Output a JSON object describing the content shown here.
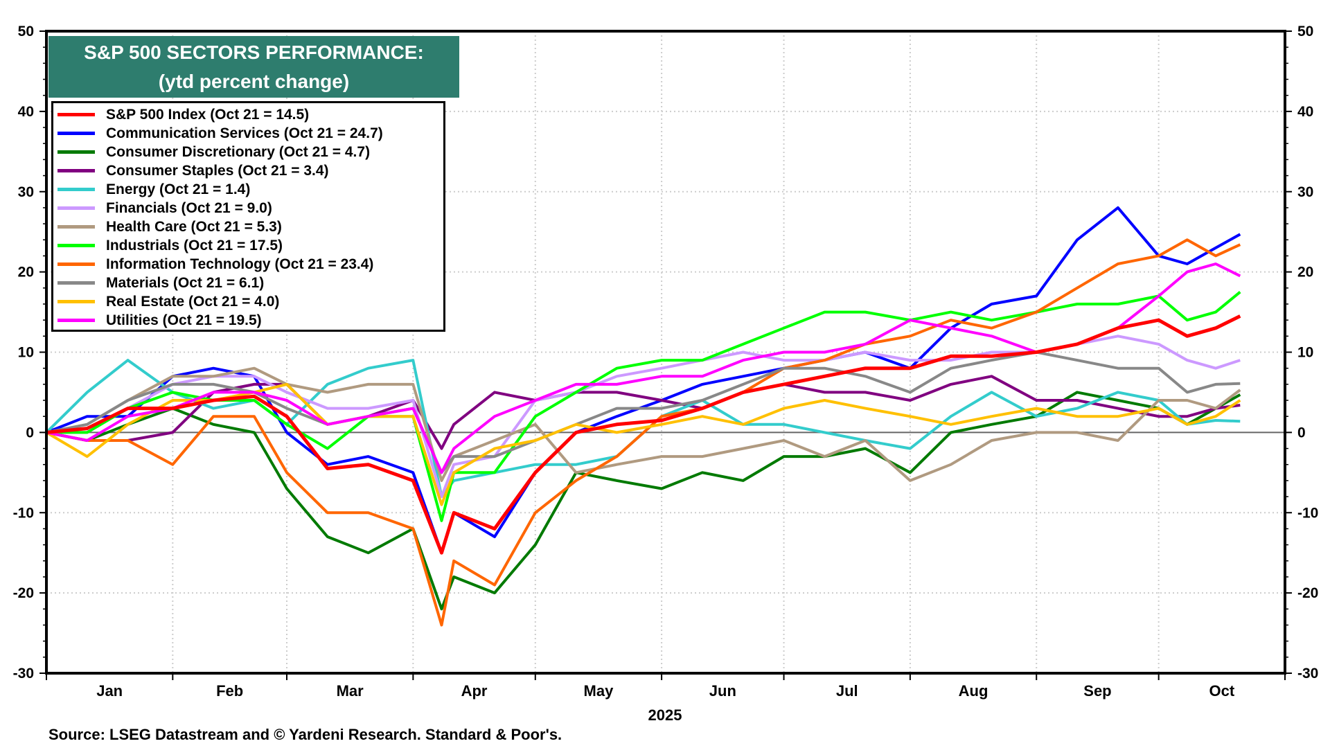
{
  "chart_data": {
    "type": "line",
    "title": "S&P 500 SECTORS PERFORMANCE:",
    "subtitle": "(ytd percent change)",
    "xlabel": "2025",
    "ylabel": "",
    "ylim": [
      -30,
      50
    ],
    "yticks": [
      50,
      40,
      30,
      20,
      10,
      0,
      -10,
      -20,
      -30
    ],
    "x_unit": "day of year 2025",
    "xlim": [
      0,
      304
    ],
    "month_ticks": [
      0,
      31,
      59,
      90,
      120,
      151,
      181,
      212,
      243,
      273,
      304
    ],
    "months": [
      "Jan",
      "Feb",
      "Mar",
      "Apr",
      "May",
      "Jun",
      "Jul",
      "Aug",
      "Sep",
      "Oct"
    ],
    "grid": true,
    "legend_position": "top-left",
    "x": [
      0,
      10,
      20,
      31,
      41,
      51,
      59,
      69,
      79,
      90,
      97,
      100,
      110,
      120,
      130,
      140,
      151,
      161,
      171,
      181,
      191,
      201,
      212,
      222,
      232,
      243,
      253,
      263,
      273,
      280,
      287,
      293
    ],
    "series": [
      {
        "name": "S&P 500 Index (Oct 21 = 14.5)",
        "color": "#ff0000",
        "width": 5,
        "values": [
          0,
          0.5,
          3,
          3,
          4,
          4.5,
          2,
          -4.5,
          -4,
          -6,
          -15,
          -10,
          -12,
          -5,
          0,
          1,
          1.5,
          3,
          5,
          6,
          7,
          8,
          8,
          9.5,
          9.5,
          10,
          11,
          13,
          14,
          12,
          13,
          14.5
        ]
      },
      {
        "name": "Communication Services (Oct 21 = 24.7)",
        "color": "#0000ff",
        "width": 4,
        "values": [
          0,
          2,
          2,
          7,
          8,
          7,
          0,
          -4,
          -3,
          -5,
          -15,
          -10,
          -13,
          -5,
          0,
          2,
          4,
          6,
          7,
          8,
          9,
          10,
          8,
          13,
          16,
          17,
          24,
          28,
          22,
          21,
          23,
          24.7
        ]
      },
      {
        "name": "Consumer Discretionary (Oct 21 = 4.7)",
        "color": "#007a00",
        "width": 4,
        "values": [
          0,
          -1,
          1,
          3,
          1,
          0,
          -7,
          -13,
          -15,
          -12,
          -22,
          -18,
          -20,
          -14,
          -5,
          -6,
          -7,
          -5,
          -6,
          -3,
          -3,
          -2,
          -5,
          0,
          1,
          2,
          5,
          4,
          3,
          1,
          3,
          4.7
        ]
      },
      {
        "name": "Consumer Staples (Oct 21 = 3.4)",
        "color": "#800080",
        "width": 4,
        "values": [
          0,
          -1,
          -1,
          0,
          5,
          6,
          6,
          1,
          2,
          4,
          -2,
          1,
          5,
          4,
          5,
          5,
          4,
          3,
          5,
          6,
          5,
          5,
          4,
          6,
          7,
          4,
          4,
          3,
          2,
          2,
          3,
          3.4
        ]
      },
      {
        "name": "Energy (Oct 21 = 1.4)",
        "color": "#33cccc",
        "width": 4,
        "values": [
          0,
          5,
          9,
          5,
          3,
          4,
          1,
          6,
          8,
          9,
          -8,
          -6,
          -5,
          -4,
          -4,
          -3,
          2,
          4,
          1,
          1,
          0,
          -1,
          -2,
          2,
          5,
          2,
          3,
          5,
          4,
          1,
          1.5,
          1.4
        ]
      },
      {
        "name": "Financials (Oct 21 = 9.0)",
        "color": "#cc99ff",
        "width": 4,
        "values": [
          0,
          0,
          3,
          6,
          7,
          7,
          5,
          3,
          3,
          4,
          -8,
          -4,
          -3,
          4,
          5,
          7,
          8,
          9,
          10,
          9,
          9,
          10,
          9,
          9,
          10,
          10,
          11,
          12,
          11,
          9,
          8,
          9
        ]
      },
      {
        "name": "Health Care (Oct 21 = 5.3)",
        "color": "#b09a80",
        "width": 4,
        "values": [
          0,
          1,
          4,
          7,
          7,
          8,
          6,
          5,
          6,
          6,
          -6,
          -3,
          -1,
          1,
          -5,
          -4,
          -3,
          -3,
          -2,
          -1,
          -3,
          -1,
          -6,
          -4,
          -1,
          0,
          0,
          -1,
          4,
          4,
          3,
          5.3
        ]
      },
      {
        "name": "Industrials (Oct 21 = 17.5)",
        "color": "#00ff00",
        "width": 4,
        "values": [
          0,
          0,
          3,
          5,
          4,
          4,
          1,
          -2,
          2,
          2,
          -11,
          -5,
          -5,
          2,
          5,
          8,
          9,
          9,
          11,
          13,
          15,
          15,
          14,
          15,
          14,
          15,
          16,
          16,
          17,
          14,
          15,
          17.5
        ]
      },
      {
        "name": "Information Technology (Oct 21 = 23.4)",
        "color": "#ff6600",
        "width": 4,
        "values": [
          0,
          -1,
          -1,
          -4,
          2,
          2,
          -5,
          -10,
          -10,
          -12,
          -24,
          -16,
          -19,
          -10,
          -6,
          -3,
          2,
          3,
          5,
          8,
          9,
          11,
          12,
          14,
          13,
          15,
          18,
          21,
          22,
          24,
          22,
          23.4
        ]
      },
      {
        "name": "Materials (Oct 21 = 6.1)",
        "color": "#888888",
        "width": 4,
        "values": [
          0,
          1,
          4,
          6,
          6,
          5,
          3,
          1,
          2,
          3,
          -5,
          -3,
          -3,
          -1,
          1,
          3,
          3,
          4,
          6,
          8,
          8,
          7,
          5,
          8,
          9,
          10,
          9,
          8,
          8,
          5,
          6,
          6.1
        ]
      },
      {
        "name": "Real Estate (Oct 21 = 4.0)",
        "color": "#ffc000",
        "width": 4,
        "values": [
          0,
          -3,
          1,
          4,
          4,
          5,
          6,
          1,
          2,
          2,
          -9,
          -5,
          -2,
          -1,
          1,
          0,
          1,
          2,
          1,
          3,
          4,
          3,
          2,
          1,
          2,
          3,
          2,
          2,
          3,
          1,
          2,
          4
        ]
      },
      {
        "name": "Utilities (Oct 21 = 19.5)",
        "color": "#ff00ff",
        "width": 4,
        "values": [
          0,
          -1,
          2,
          3,
          5,
          5,
          4,
          1,
          2,
          3,
          -5,
          -2,
          2,
          4,
          6,
          6,
          7,
          7,
          9,
          10,
          10,
          11,
          14,
          13,
          12,
          10,
          11,
          13,
          17,
          20,
          21,
          19.5
        ]
      }
    ],
    "source": "Source: LSEG Datastream and © Yardeni Research. Standard & Poor's."
  }
}
